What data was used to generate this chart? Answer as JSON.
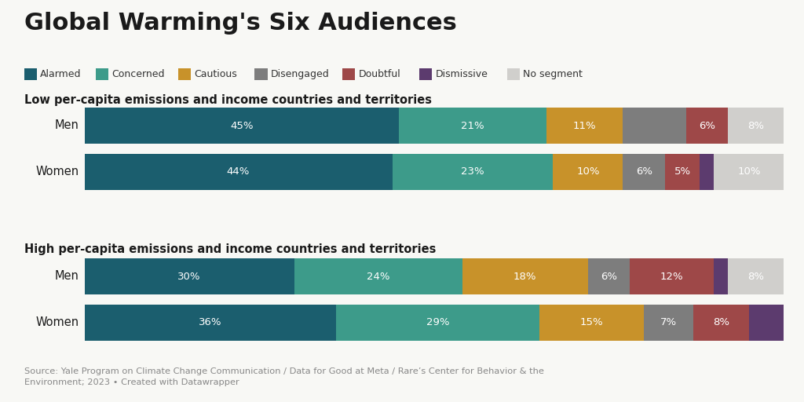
{
  "title": "Global Warming's Six Audiences",
  "subtitle_low": "Low per-capita emissions and income countries and territories",
  "subtitle_high": "High per-capita emissions and income countries and territories",
  "source_text": "Source: Yale Program on Climate Change Communication / Data for Good at Meta / Rare’s Center for Behavior & the\nEnvironment; 2023 • Created with Datawrapper",
  "segments": [
    "Alarmed",
    "Concerned",
    "Cautious",
    "Disengaged",
    "Doubtful",
    "Dismissive",
    "No segment"
  ],
  "colors": [
    "#1b5e6e",
    "#3d9b8a",
    "#c8922a",
    "#7d7d7d",
    "#9e4848",
    "#5c3b6e",
    "#d0cfcc"
  ],
  "bars": {
    "low_men": [
      45,
      21,
      11,
      9,
      6,
      0,
      8
    ],
    "low_women": [
      44,
      23,
      10,
      6,
      5,
      2,
      10
    ],
    "high_men": [
      30,
      24,
      18,
      6,
      12,
      2,
      8
    ],
    "high_women": [
      36,
      29,
      15,
      7,
      8,
      5,
      0
    ]
  },
  "bar_labels": {
    "low_men": [
      "45%",
      "21%",
      "11%",
      "",
      "6%",
      "",
      "8%"
    ],
    "low_women": [
      "44%",
      "23%",
      "10%",
      "6%",
      "5%",
      "",
      "10%"
    ],
    "high_men": [
      "30%",
      "24%",
      "18%",
      "6%",
      "12%",
      "",
      "8%"
    ],
    "high_women": [
      "36%",
      "29%",
      "15%",
      "7%",
      "8%",
      "",
      ""
    ]
  },
  "row_labels": [
    "Men",
    "Women",
    "Men",
    "Women"
  ],
  "bg_color": "#f8f8f5"
}
